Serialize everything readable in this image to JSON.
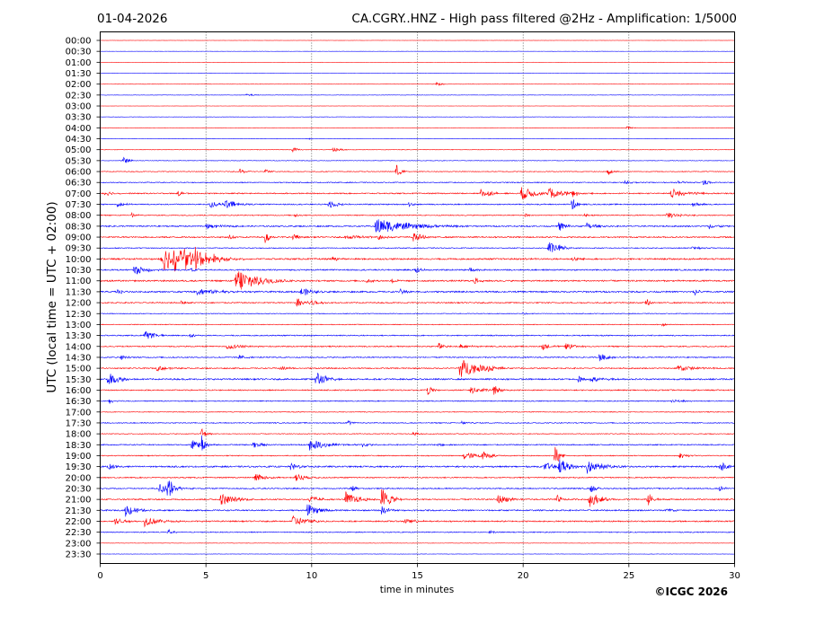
{
  "chart_data": {
    "type": "line",
    "date": "01-04-2026",
    "title": "CA.CGRY..HNZ - High pass filtered @2Hz - Amplification: 1/5000",
    "xlabel": "time in minutes",
    "ylabel": "UTC (local time = UTC + 02:00)",
    "copyright": "©ICGC 2026",
    "xlim": [
      0,
      30
    ],
    "x_ticks": [
      0,
      5,
      10,
      15,
      20,
      25,
      30
    ],
    "grid": "vertical dotted lines at each x tick",
    "row_labels": [
      "00:00",
      "00:30",
      "01:00",
      "01:30",
      "02:00",
      "02:30",
      "03:00",
      "03:30",
      "04:00",
      "04:30",
      "05:00",
      "05:30",
      "06:00",
      "06:30",
      "07:00",
      "07:30",
      "08:00",
      "08:30",
      "09:00",
      "09:30",
      "10:00",
      "10:30",
      "11:00",
      "11:30",
      "12:00",
      "12:30",
      "13:00",
      "13:30",
      "14:00",
      "14:30",
      "15:00",
      "15:30",
      "16:00",
      "16:30",
      "17:00",
      "17:30",
      "18:00",
      "18:30",
      "19:00",
      "19:30",
      "20:00",
      "20:30",
      "21:00",
      "21:30",
      "22:00",
      "22:30",
      "23:00",
      "23:30"
    ],
    "row_colors": [
      "#ff0000",
      "#0000ff"
    ],
    "row_noise": [
      0.1,
      0.1,
      0.1,
      0.1,
      0.2,
      0.2,
      0.1,
      0.2,
      0.2,
      0.2,
      0.3,
      0.3,
      0.4,
      0.5,
      0.6,
      0.6,
      0.5,
      0.7,
      0.7,
      0.5,
      0.8,
      0.7,
      0.8,
      0.8,
      0.6,
      0.4,
      0.4,
      0.6,
      0.6,
      0.6,
      0.6,
      0.8,
      0.6,
      0.5,
      0.4,
      0.5,
      0.4,
      0.6,
      0.5,
      0.8,
      0.6,
      0.6,
      0.7,
      0.7,
      0.7,
      0.5,
      0.2,
      0.2
    ],
    "events": [
      {
        "row": 4,
        "t": 15.9,
        "amp": 2,
        "dur": 0.3
      },
      {
        "row": 5,
        "t": 6.9,
        "amp": 2,
        "dur": 0.3
      },
      {
        "row": 8,
        "t": 24.9,
        "amp": 2,
        "dur": 0.2
      },
      {
        "row": 9,
        "t": 9.8,
        "amp": 1,
        "dur": 0.2
      },
      {
        "row": 10,
        "t": 9.1,
        "amp": 3,
        "dur": 0.2
      },
      {
        "row": 10,
        "t": 11.0,
        "amp": 3,
        "dur": 0.3
      },
      {
        "row": 11,
        "t": 1.1,
        "amp": 5,
        "dur": 0.2
      },
      {
        "row": 12,
        "t": 6.6,
        "amp": 3,
        "dur": 0.3
      },
      {
        "row": 12,
        "t": 7.8,
        "amp": 3,
        "dur": 0.2
      },
      {
        "row": 12,
        "t": 14.0,
        "amp": 8,
        "dur": 0.2
      },
      {
        "row": 12,
        "t": 24.0,
        "amp": 5,
        "dur": 0.2
      },
      {
        "row": 13,
        "t": 24.8,
        "amp": 2,
        "dur": 0.3
      },
      {
        "row": 13,
        "t": 27.3,
        "amp": 2,
        "dur": 0.3
      },
      {
        "row": 13,
        "t": 28.5,
        "amp": 5,
        "dur": 0.2
      },
      {
        "row": 14,
        "t": 0.2,
        "amp": 4,
        "dur": 0.3
      },
      {
        "row": 14,
        "t": 3.7,
        "amp": 3,
        "dur": 0.2
      },
      {
        "row": 14,
        "t": 18.0,
        "amp": 5,
        "dur": 0.5
      },
      {
        "row": 14,
        "t": 19.9,
        "amp": 8,
        "dur": 0.6
      },
      {
        "row": 14,
        "t": 21.2,
        "amp": 6,
        "dur": 0.8
      },
      {
        "row": 14,
        "t": 22.3,
        "amp": 4,
        "dur": 0.3
      },
      {
        "row": 14,
        "t": 27.0,
        "amp": 5,
        "dur": 0.8
      },
      {
        "row": 15,
        "t": 0.8,
        "amp": 3,
        "dur": 0.3
      },
      {
        "row": 15,
        "t": 5.2,
        "amp": 5,
        "dur": 0.3
      },
      {
        "row": 15,
        "t": 5.9,
        "amp": 6,
        "dur": 0.5
      },
      {
        "row": 15,
        "t": 10.8,
        "amp": 5,
        "dur": 0.4
      },
      {
        "row": 15,
        "t": 14.6,
        "amp": 3,
        "dur": 0.2
      },
      {
        "row": 15,
        "t": 22.3,
        "amp": 8,
        "dur": 0.2
      },
      {
        "row": 15,
        "t": 28.0,
        "amp": 3,
        "dur": 0.3
      },
      {
        "row": 16,
        "t": 1.5,
        "amp": 3,
        "dur": 0.2
      },
      {
        "row": 16,
        "t": 9.2,
        "amp": 2,
        "dur": 0.2
      },
      {
        "row": 16,
        "t": 20.1,
        "amp": 2,
        "dur": 0.2
      },
      {
        "row": 16,
        "t": 22.9,
        "amp": 3,
        "dur": 0.2
      },
      {
        "row": 16,
        "t": 26.8,
        "amp": 4,
        "dur": 0.5
      },
      {
        "row": 17,
        "t": 5.0,
        "amp": 3,
        "dur": 0.6
      },
      {
        "row": 17,
        "t": 13.0,
        "amp": 9,
        "dur": 1.5
      },
      {
        "row": 17,
        "t": 21.7,
        "amp": 6,
        "dur": 0.3
      },
      {
        "row": 17,
        "t": 23.0,
        "amp": 4,
        "dur": 0.4
      },
      {
        "row": 17,
        "t": 28.8,
        "amp": 3,
        "dur": 0.4
      },
      {
        "row": 18,
        "t": 6.1,
        "amp": 3,
        "dur": 0.2
      },
      {
        "row": 18,
        "t": 7.8,
        "amp": 7,
        "dur": 0.2
      },
      {
        "row": 18,
        "t": 9.1,
        "amp": 6,
        "dur": 0.2
      },
      {
        "row": 18,
        "t": 11.6,
        "amp": 3,
        "dur": 0.8
      },
      {
        "row": 18,
        "t": 13.1,
        "amp": 4,
        "dur": 0.3
      },
      {
        "row": 18,
        "t": 14.8,
        "amp": 6,
        "dur": 0.4
      },
      {
        "row": 19,
        "t": 21.2,
        "amp": 8,
        "dur": 0.4
      },
      {
        "row": 19,
        "t": 21.7,
        "amp": 3,
        "dur": 0.3
      },
      {
        "row": 19,
        "t": 28.0,
        "amp": 2,
        "dur": 0.3
      },
      {
        "row": 20,
        "t": 2.9,
        "amp": 14,
        "dur": 1.2
      },
      {
        "row": 20,
        "t": 3.5,
        "amp": 12,
        "dur": 1.0
      },
      {
        "row": 20,
        "t": 4.5,
        "amp": 10,
        "dur": 0.8
      },
      {
        "row": 20,
        "t": 11.0,
        "amp": 3,
        "dur": 0.2
      },
      {
        "row": 20,
        "t": 20.0,
        "amp": 2,
        "dur": 0.2
      },
      {
        "row": 20,
        "t": 22.3,
        "amp": 3,
        "dur": 0.3
      },
      {
        "row": 21,
        "t": 1.6,
        "amp": 6,
        "dur": 0.5
      },
      {
        "row": 21,
        "t": 4.3,
        "amp": 3,
        "dur": 0.3
      },
      {
        "row": 21,
        "t": 14.9,
        "amp": 6,
        "dur": 0.2
      },
      {
        "row": 21,
        "t": 17.5,
        "amp": 4,
        "dur": 0.2
      },
      {
        "row": 22,
        "t": 6.4,
        "amp": 16,
        "dur": 0.9
      },
      {
        "row": 22,
        "t": 12.6,
        "amp": 3,
        "dur": 0.2
      },
      {
        "row": 22,
        "t": 13.8,
        "amp": 3,
        "dur": 0.2
      },
      {
        "row": 22,
        "t": 17.7,
        "amp": 4,
        "dur": 0.2
      },
      {
        "row": 23,
        "t": 0.8,
        "amp": 4,
        "dur": 0.2
      },
      {
        "row": 23,
        "t": 4.6,
        "amp": 4,
        "dur": 1.0
      },
      {
        "row": 23,
        "t": 9.5,
        "amp": 6,
        "dur": 0.4
      },
      {
        "row": 23,
        "t": 14.2,
        "amp": 3,
        "dur": 0.3
      },
      {
        "row": 23,
        "t": 28.1,
        "amp": 5,
        "dur": 0.2
      },
      {
        "row": 24,
        "t": 3.8,
        "amp": 3,
        "dur": 0.2
      },
      {
        "row": 24,
        "t": 9.3,
        "amp": 6,
        "dur": 0.5
      },
      {
        "row": 24,
        "t": 10.0,
        "amp": 3,
        "dur": 0.3
      },
      {
        "row": 24,
        "t": 25.8,
        "amp": 5,
        "dur": 0.2
      },
      {
        "row": 25,
        "t": 20.0,
        "amp": 2,
        "dur": 0.2
      },
      {
        "row": 26,
        "t": 26.6,
        "amp": 3,
        "dur": 0.1
      },
      {
        "row": 27,
        "t": 2.1,
        "amp": 5,
        "dur": 0.5
      },
      {
        "row": 27,
        "t": 4.2,
        "amp": 2,
        "dur": 0.3
      },
      {
        "row": 28,
        "t": 6.0,
        "amp": 3,
        "dur": 0.8
      },
      {
        "row": 28,
        "t": 16.0,
        "amp": 5,
        "dur": 0.2
      },
      {
        "row": 28,
        "t": 17.0,
        "amp": 3,
        "dur": 0.4
      },
      {
        "row": 28,
        "t": 20.9,
        "amp": 5,
        "dur": 0.3
      },
      {
        "row": 28,
        "t": 22.0,
        "amp": 4,
        "dur": 0.5
      },
      {
        "row": 29,
        "t": 1.0,
        "amp": 3,
        "dur": 0.2
      },
      {
        "row": 29,
        "t": 6.5,
        "amp": 3,
        "dur": 0.4
      },
      {
        "row": 29,
        "t": 23.6,
        "amp": 5,
        "dur": 0.4
      },
      {
        "row": 30,
        "t": 2.7,
        "amp": 4,
        "dur": 0.4
      },
      {
        "row": 30,
        "t": 8.5,
        "amp": 3,
        "dur": 0.3
      },
      {
        "row": 30,
        "t": 17.0,
        "amp": 12,
        "dur": 0.8
      },
      {
        "row": 30,
        "t": 18.3,
        "amp": 4,
        "dur": 0.3
      },
      {
        "row": 30,
        "t": 27.3,
        "amp": 4,
        "dur": 0.8
      },
      {
        "row": 31,
        "t": 0.3,
        "amp": 9,
        "dur": 0.5
      },
      {
        "row": 31,
        "t": 10.2,
        "amp": 10,
        "dur": 0.4
      },
      {
        "row": 31,
        "t": 22.6,
        "amp": 4,
        "dur": 0.3
      },
      {
        "row": 31,
        "t": 23.2,
        "amp": 3,
        "dur": 0.5
      },
      {
        "row": 32,
        "t": 15.5,
        "amp": 6,
        "dur": 0.2
      },
      {
        "row": 32,
        "t": 17.5,
        "amp": 4,
        "dur": 0.6
      },
      {
        "row": 32,
        "t": 18.6,
        "amp": 8,
        "dur": 0.2
      },
      {
        "row": 33,
        "t": 0.4,
        "amp": 3,
        "dur": 0.3
      },
      {
        "row": 33,
        "t": 27.0,
        "amp": 3,
        "dur": 0.4
      },
      {
        "row": 35,
        "t": 11.7,
        "amp": 3,
        "dur": 0.2
      },
      {
        "row": 35,
        "t": 17.1,
        "amp": 2,
        "dur": 0.3
      },
      {
        "row": 36,
        "t": 4.8,
        "amp": 8,
        "dur": 0.2
      },
      {
        "row": 36,
        "t": 14.8,
        "amp": 3,
        "dur": 0.2
      },
      {
        "row": 37,
        "t": 4.3,
        "amp": 7,
        "dur": 0.4
      },
      {
        "row": 37,
        "t": 4.8,
        "amp": 10,
        "dur": 0.2
      },
      {
        "row": 37,
        "t": 7.2,
        "amp": 5,
        "dur": 0.4
      },
      {
        "row": 37,
        "t": 9.9,
        "amp": 6,
        "dur": 0.8
      },
      {
        "row": 37,
        "t": 12.4,
        "amp": 3,
        "dur": 0.3
      },
      {
        "row": 37,
        "t": 16.0,
        "amp": 3,
        "dur": 0.2
      },
      {
        "row": 38,
        "t": 17.2,
        "amp": 5,
        "dur": 0.6
      },
      {
        "row": 38,
        "t": 18.1,
        "amp": 7,
        "dur": 0.3
      },
      {
        "row": 38,
        "t": 21.5,
        "amp": 14,
        "dur": 0.2
      },
      {
        "row": 38,
        "t": 27.4,
        "amp": 3,
        "dur": 0.4
      },
      {
        "row": 39,
        "t": 0.4,
        "amp": 4,
        "dur": 0.4
      },
      {
        "row": 39,
        "t": 9.0,
        "amp": 4,
        "dur": 0.5
      },
      {
        "row": 39,
        "t": 21.0,
        "amp": 4,
        "dur": 0.8
      },
      {
        "row": 39,
        "t": 21.7,
        "amp": 10,
        "dur": 0.4
      },
      {
        "row": 39,
        "t": 23.0,
        "amp": 8,
        "dur": 0.7
      },
      {
        "row": 39,
        "t": 29.3,
        "amp": 6,
        "dur": 0.4
      },
      {
        "row": 40,
        "t": 7.3,
        "amp": 6,
        "dur": 0.4
      },
      {
        "row": 40,
        "t": 9.2,
        "amp": 6,
        "dur": 0.4
      },
      {
        "row": 41,
        "t": 2.8,
        "amp": 6,
        "dur": 0.6
      },
      {
        "row": 41,
        "t": 3.2,
        "amp": 12,
        "dur": 0.2
      },
      {
        "row": 41,
        "t": 11.9,
        "amp": 4,
        "dur": 0.2
      },
      {
        "row": 41,
        "t": 23.2,
        "amp": 5,
        "dur": 0.2
      },
      {
        "row": 41,
        "t": 29.3,
        "amp": 4,
        "dur": 0.2
      },
      {
        "row": 42,
        "t": 5.7,
        "amp": 7,
        "dur": 0.6
      },
      {
        "row": 42,
        "t": 9.9,
        "amp": 5,
        "dur": 0.4
      },
      {
        "row": 42,
        "t": 11.6,
        "amp": 9,
        "dur": 0.5
      },
      {
        "row": 42,
        "t": 13.3,
        "amp": 14,
        "dur": 0.4
      },
      {
        "row": 42,
        "t": 18.8,
        "amp": 6,
        "dur": 0.5
      },
      {
        "row": 42,
        "t": 21.6,
        "amp": 5,
        "dur": 0.2
      },
      {
        "row": 42,
        "t": 23.1,
        "amp": 9,
        "dur": 0.5
      },
      {
        "row": 42,
        "t": 25.9,
        "amp": 9,
        "dur": 0.2
      },
      {
        "row": 43,
        "t": 1.2,
        "amp": 8,
        "dur": 0.4
      },
      {
        "row": 43,
        "t": 9.8,
        "amp": 7,
        "dur": 0.5
      },
      {
        "row": 43,
        "t": 13.3,
        "amp": 5,
        "dur": 0.4
      },
      {
        "row": 43,
        "t": 26.7,
        "amp": 3,
        "dur": 0.4
      },
      {
        "row": 44,
        "t": 0.7,
        "amp": 4,
        "dur": 0.4
      },
      {
        "row": 44,
        "t": 2.1,
        "amp": 6,
        "dur": 0.6
      },
      {
        "row": 44,
        "t": 9.1,
        "amp": 7,
        "dur": 0.6
      },
      {
        "row": 44,
        "t": 14.4,
        "amp": 3,
        "dur": 0.5
      },
      {
        "row": 45,
        "t": 3.2,
        "amp": 4,
        "dur": 0.2
      },
      {
        "row": 45,
        "t": 18.4,
        "amp": 2,
        "dur": 0.2
      }
    ]
  }
}
